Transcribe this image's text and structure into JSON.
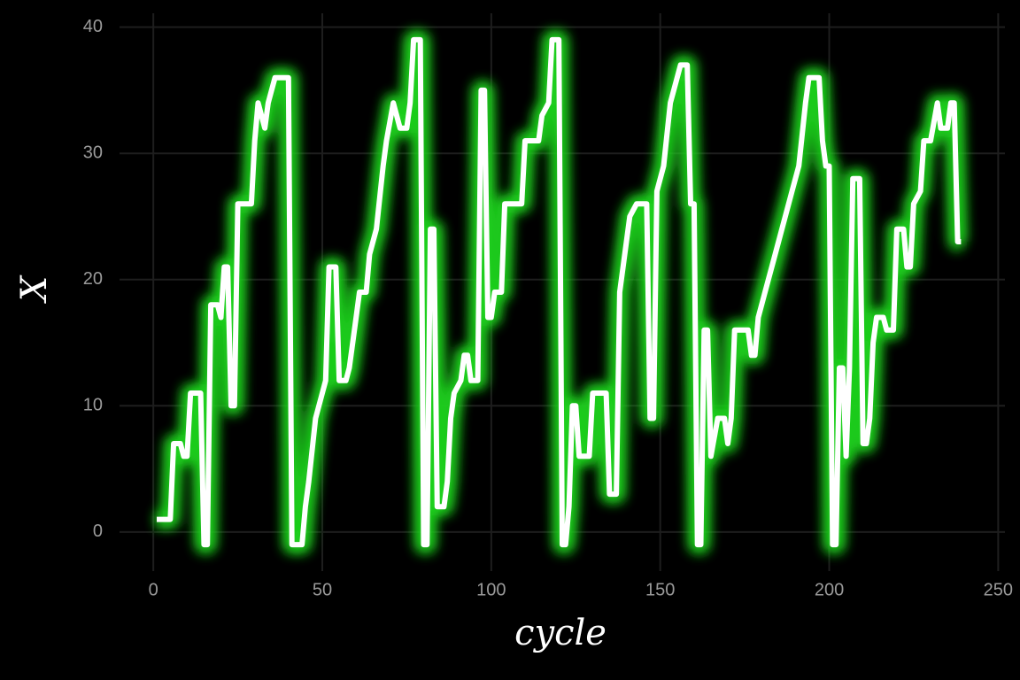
{
  "chart_data": {
    "type": "line",
    "x_label": "cycle",
    "y_label": "X",
    "x": [
      1,
      5,
      6,
      8,
      9,
      10,
      11,
      14,
      15,
      16,
      17,
      19,
      20,
      21,
      22,
      23,
      24,
      25,
      29,
      30,
      31,
      33,
      34,
      36,
      40,
      41,
      44,
      45,
      46,
      48,
      50,
      51,
      52,
      54,
      55,
      57,
      58,
      60,
      61,
      63,
      64,
      66,
      68,
      69,
      71,
      73,
      75,
      76,
      77,
      79,
      80,
      81,
      82,
      83,
      84,
      86,
      87,
      88,
      89,
      91,
      92,
      93,
      94,
      96,
      97,
      98,
      99,
      100,
      101,
      103,
      104,
      109,
      110,
      114,
      115,
      117,
      118,
      120,
      121,
      122,
      123,
      124,
      125,
      126,
      129,
      130,
      134,
      135,
      137,
      138,
      139,
      141,
      143,
      146,
      147,
      148,
      149,
      151,
      153,
      155,
      156,
      158,
      159,
      160,
      161,
      162,
      163,
      164,
      165,
      167,
      169,
      170,
      171,
      172,
      176,
      177,
      178,
      179,
      181,
      184,
      186,
      189,
      191,
      193,
      194,
      197,
      198,
      199,
      200,
      201,
      202,
      203,
      204,
      205,
      206,
      207,
      209,
      210,
      211,
      212,
      213,
      214,
      216,
      217,
      219,
      220,
      222,
      223,
      224,
      225,
      227,
      228,
      230,
      232,
      233,
      235,
      236,
      237,
      238,
      239
    ],
    "values": [
      1,
      1,
      7,
      7,
      6,
      6,
      11,
      11,
      -1,
      -1,
      18,
      18,
      17,
      21,
      21,
      10,
      10,
      26,
      26,
      31,
      34,
      32,
      34,
      36,
      36,
      -1,
      -1,
      2,
      4,
      9,
      11,
      12,
      21,
      21,
      12,
      12,
      13,
      17,
      19,
      19,
      22,
      24,
      29,
      31,
      34,
      32,
      32,
      34,
      39,
      39,
      -1,
      -1,
      24,
      24,
      2,
      2,
      4,
      9,
      11,
      12,
      14,
      14,
      12,
      12,
      35,
      35,
      17,
      17,
      19,
      19,
      26,
      26,
      31,
      31,
      33,
      34,
      39,
      39,
      -1,
      -1,
      2,
      10,
      10,
      6,
      6,
      11,
      11,
      3,
      3,
      19,
      21,
      25,
      26,
      26,
      9,
      9,
      27,
      29,
      34,
      36,
      37,
      37,
      26,
      26,
      -1,
      -1,
      16,
      16,
      6,
      9,
      9,
      7,
      9,
      16,
      16,
      14,
      14,
      17,
      19,
      22,
      24,
      27,
      29,
      34,
      36,
      36,
      31,
      29,
      29,
      -1,
      -1,
      13,
      13,
      6,
      13,
      28,
      28,
      7,
      7,
      9,
      15,
      17,
      17,
      16,
      16,
      24,
      24,
      21,
      21,
      26,
      27,
      31,
      31,
      34,
      32,
      32,
      34,
      34,
      23,
      23
    ],
    "color": "#ffffff",
    "glow_color": "#1fd11f",
    "xlim": [
      -10,
      252
    ],
    "ylim": [
      -3.1,
      41.1
    ],
    "xticks": [
      0,
      50,
      100,
      150,
      200,
      250
    ],
    "yticks": [
      0,
      10,
      20,
      30,
      40
    ],
    "grid": true
  }
}
